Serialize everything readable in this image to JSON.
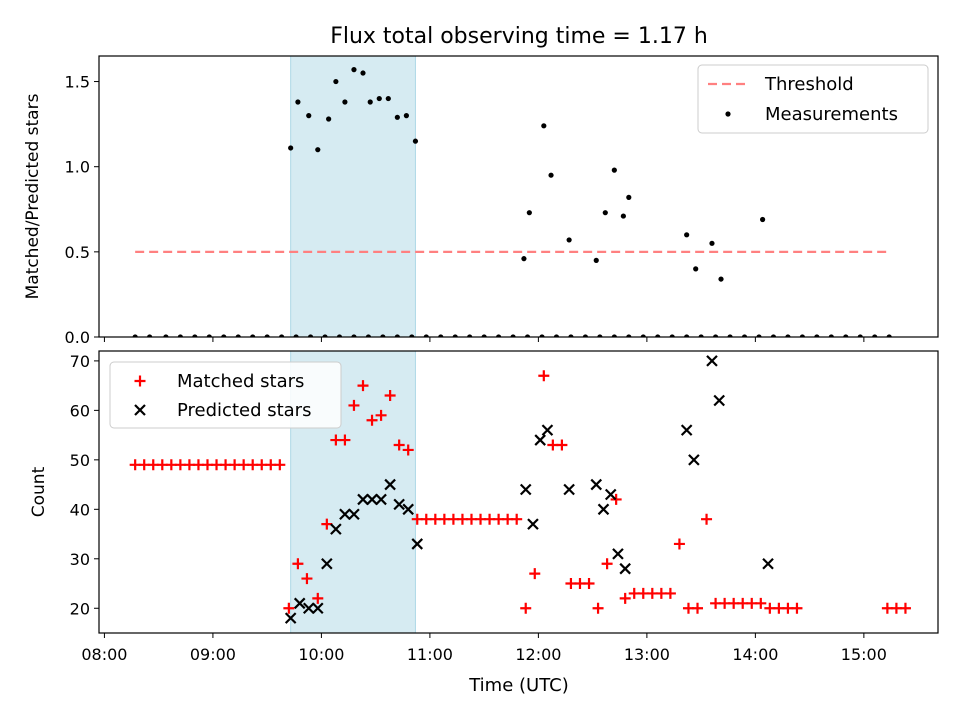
{
  "figure": {
    "title": "Flux total observing time = 1.17 h",
    "xlabel": "Time (UTC)",
    "x_ticks": [
      "08:00",
      "09:00",
      "10:00",
      "11:00",
      "12:00",
      "13:00",
      "14:00",
      "15:00"
    ],
    "x_tick_hours": [
      8,
      9,
      10,
      11,
      12,
      13,
      14,
      15
    ]
  },
  "chart_data": [
    {
      "type": "scatter",
      "title": "Flux total observing time = 1.17 h",
      "ylabel": "Matched/Predicted stars",
      "xlim": [
        "07:57",
        "15:41"
      ],
      "ylim": [
        0,
        1.65
      ],
      "y_ticks": [
        0.0,
        0.5,
        1.0,
        1.5
      ],
      "y_tick_labels": [
        "0.0",
        "0.5",
        "1.0",
        "1.5"
      ],
      "shaded_span": [
        "09:43",
        "10:52"
      ],
      "legend_position": "upper right",
      "threshold": {
        "name": "Threshold",
        "y": 0.5,
        "x_range": [
          "08:17",
          "15:14"
        ],
        "color": "#ff8080"
      },
      "series": [
        {
          "name": "Measurements",
          "color": "#000000",
          "x": [
            "08:17",
            "08:25",
            "08:34",
            "08:42",
            "08:50",
            "08:58",
            "09:06",
            "09:14",
            "09:22",
            "09:30",
            "09:38",
            "09:46",
            "09:54",
            "10:02",
            "10:10",
            "10:18",
            "10:26",
            "10:34",
            "10:42",
            "10:50",
            "10:58",
            "11:06",
            "11:14",
            "11:22",
            "11:30",
            "11:38",
            "11:46",
            "11:54",
            "12:02",
            "12:10",
            "12:18",
            "12:26",
            "12:34",
            "12:42",
            "12:50",
            "12:58",
            "13:06",
            "13:14",
            "13:22",
            "13:30",
            "13:38",
            "13:46",
            "13:54",
            "14:02",
            "14:10",
            "14:18",
            "14:26",
            "14:34",
            "14:42",
            "14:50",
            "14:58",
            "15:06",
            "15:14",
            "09:43",
            "09:47",
            "09:53",
            "09:58",
            "10:04",
            "10:08",
            "10:13",
            "10:18",
            "10:23",
            "10:27",
            "10:32",
            "10:37",
            "10:42",
            "10:47",
            "10:52",
            "11:52",
            "11:55",
            "12:03",
            "12:07",
            "12:17",
            "12:32",
            "12:37",
            "12:42",
            "12:47",
            "12:50",
            "13:22",
            "13:27",
            "13:36",
            "13:41",
            "14:04"
          ],
          "y": [
            0,
            0,
            0,
            0,
            0,
            0,
            0,
            0,
            0,
            0,
            0,
            0,
            0,
            0,
            0,
            0,
            0,
            0,
            0,
            0,
            0,
            0,
            0,
            0,
            0,
            0,
            0,
            0,
            0,
            0,
            0,
            0,
            0,
            0,
            0,
            0,
            0,
            0,
            0,
            0,
            0,
            0,
            0,
            0,
            0,
            0,
            0,
            0,
            0,
            0,
            0,
            0,
            0,
            1.11,
            1.38,
            1.3,
            1.1,
            1.28,
            1.5,
            1.38,
            1.57,
            1.55,
            1.38,
            1.4,
            1.4,
            1.29,
            1.3,
            1.15,
            0.46,
            0.73,
            1.24,
            0.95,
            0.57,
            0.45,
            0.73,
            0.98,
            0.71,
            0.82,
            0.6,
            0.4,
            0.55,
            0.34,
            0.69
          ]
        }
      ]
    },
    {
      "type": "scatter",
      "ylabel": "Count",
      "xlabel": "Time (UTC)",
      "xlim": [
        "07:57",
        "15:41"
      ],
      "ylim": [
        15,
        72
      ],
      "y_ticks": [
        20,
        30,
        40,
        50,
        60,
        70
      ],
      "y_tick_labels": [
        "20",
        "30",
        "40",
        "50",
        "60",
        "70"
      ],
      "shaded_span": [
        "09:43",
        "10:52"
      ],
      "legend_position": "upper left",
      "series": [
        {
          "name": "Matched stars",
          "marker": "plus",
          "color": "#ff0000",
          "x": [
            "08:17",
            "08:22",
            "08:27",
            "08:32",
            "08:37",
            "08:42",
            "08:47",
            "08:52",
            "08:57",
            "09:02",
            "09:07",
            "09:12",
            "09:17",
            "09:22",
            "09:27",
            "09:32",
            "09:37",
            "09:42",
            "09:47",
            "09:52",
            "09:58",
            "10:03",
            "10:08",
            "10:13",
            "10:18",
            "10:23",
            "10:28",
            "10:33",
            "10:38",
            "10:43",
            "10:48",
            "10:53",
            "10:58",
            "11:03",
            "11:08",
            "11:13",
            "11:18",
            "11:23",
            "11:28",
            "11:33",
            "11:38",
            "11:43",
            "11:48",
            "11:53",
            "11:58",
            "12:03",
            "12:08",
            "12:13",
            "12:18",
            "12:23",
            "12:28",
            "12:33",
            "12:38",
            "12:43",
            "12:48",
            "12:53",
            "12:58",
            "13:03",
            "13:08",
            "13:13",
            "13:18",
            "13:23",
            "13:28",
            "13:33",
            "13:38",
            "13:43",
            "13:48",
            "13:53",
            "13:58",
            "14:03",
            "14:08",
            "14:13",
            "14:18",
            "14:23",
            "15:13",
            "15:18",
            "15:23"
          ],
          "y": [
            49,
            49,
            49,
            49,
            49,
            49,
            49,
            49,
            49,
            49,
            49,
            49,
            49,
            49,
            49,
            49,
            49,
            20,
            29,
            26,
            22,
            37,
            54,
            54,
            61,
            65,
            58,
            59,
            63,
            53,
            52,
            38,
            38,
            38,
            38,
            38,
            38,
            38,
            38,
            38,
            38,
            38,
            38,
            20,
            27,
            67,
            53,
            53,
            25,
            25,
            25,
            20,
            29,
            42,
            22,
            23,
            23,
            23,
            23,
            23,
            33,
            20,
            20,
            38,
            21,
            21,
            21,
            21,
            21,
            21,
            20,
            20,
            20,
            20,
            20,
            20,
            20
          ]
        },
        {
          "name": "Predicted stars",
          "marker": "x",
          "color": "#000000",
          "x": [
            "09:43",
            "09:48",
            "09:53",
            "09:58",
            "10:03",
            "10:08",
            "10:13",
            "10:18",
            "10:23",
            "10:28",
            "10:33",
            "10:38",
            "10:43",
            "10:48",
            "10:53",
            "11:53",
            "11:57",
            "12:01",
            "12:05",
            "12:17",
            "12:32",
            "12:36",
            "12:40",
            "12:44",
            "12:48",
            "13:22",
            "13:26",
            "13:36",
            "13:40",
            "14:07"
          ],
          "y": [
            18,
            21,
            20,
            20,
            29,
            36,
            39,
            39,
            42,
            42,
            42,
            45,
            41,
            40,
            33,
            44,
            37,
            54,
            56,
            44,
            45,
            40,
            43,
            31,
            28,
            56,
            50,
            70,
            62,
            29
          ]
        }
      ]
    }
  ]
}
